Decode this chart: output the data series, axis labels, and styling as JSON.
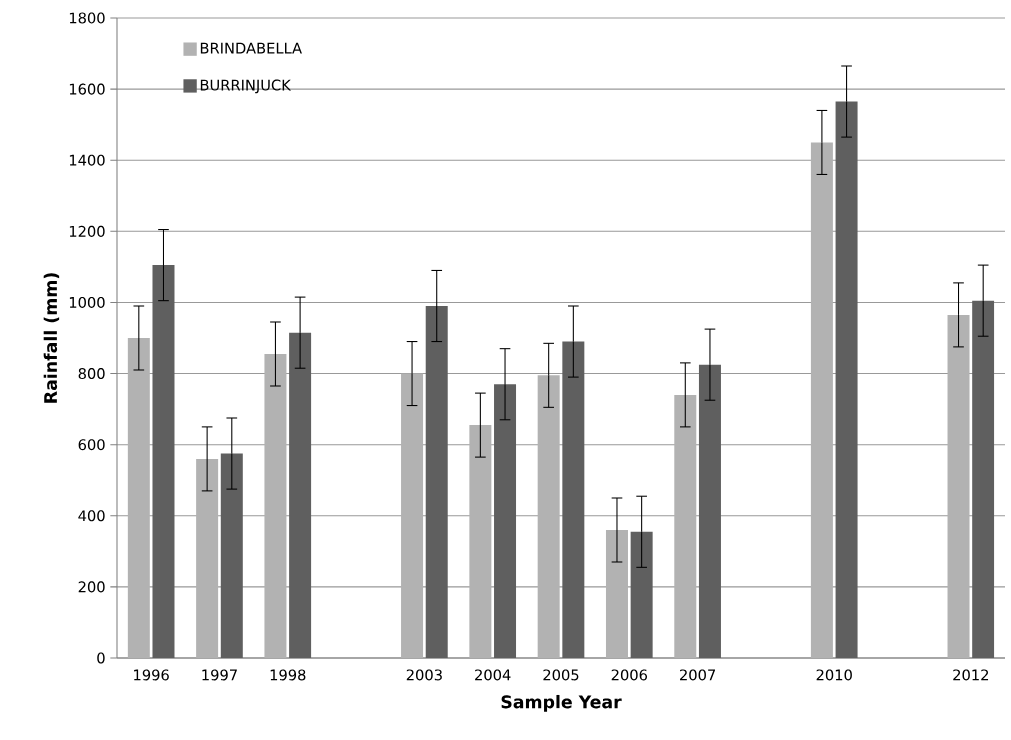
{
  "chart_data": {
    "type": "bar",
    "xlabel": "Sample Year",
    "ylabel": "Rainfall (mm)",
    "categories": [
      "1996",
      "1997",
      "1998",
      null,
      "2003",
      "2004",
      "2005",
      "2006",
      "2007",
      null,
      "2010",
      null,
      "2012"
    ],
    "series": [
      {
        "name": "BRINDABELLA",
        "color": "#b2b2b2",
        "values": [
          900,
          560,
          855,
          null,
          800,
          655,
          795,
          360,
          740,
          null,
          1450,
          null,
          965
        ],
        "errors": [
          90,
          90,
          90,
          null,
          90,
          90,
          90,
          90,
          90,
          null,
          90,
          null,
          90
        ]
      },
      {
        "name": "BURRINJUCK",
        "color": "#5f5f5f",
        "values": [
          1105,
          575,
          915,
          null,
          990,
          770,
          890,
          355,
          825,
          null,
          1565,
          null,
          1005
        ],
        "errors": [
          100,
          100,
          100,
          null,
          100,
          100,
          100,
          100,
          100,
          null,
          100,
          null,
          100
        ]
      }
    ],
    "ylim": [
      0,
      1800
    ],
    "yticks": [
      0,
      200,
      400,
      600,
      800,
      1000,
      1200,
      1400,
      1600,
      1800
    ],
    "grid": "y",
    "legend": "top left"
  }
}
